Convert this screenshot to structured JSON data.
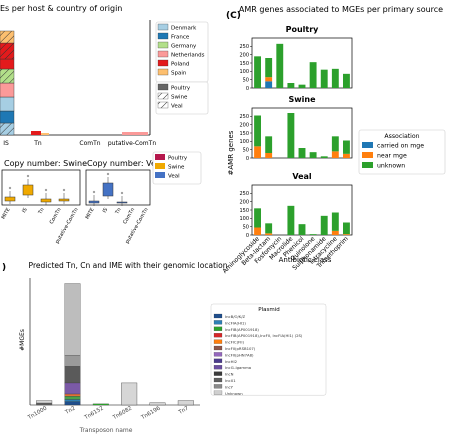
{
  "figure": {
    "panel_a_title": "Es per host & country of origin",
    "panel_c_label": "(C)",
    "panel_c_title": "AMR genes associated to MGEs per primary source",
    "panel_d_label": ")",
    "panel_d_title": "Predicted Tn, Cn and IME with their genomic location",
    "copy_swine_title": "Copy number: Swine",
    "copy_veal_title": "Copy number: Veal",
    "legend_heading": "Association",
    "plasmid_heading": "Plasmid",
    "amr_ylabel": "#AMR genes",
    "amr_xlabel": "Antibiotic class",
    "d_ylabel": "#MGEs",
    "d_xlabel": "Transposon name"
  },
  "colors": {
    "carried": "#1f77b4",
    "near": "#ff7f0e",
    "unknown": "#2ca02c"
  },
  "chart_data": [
    {
      "type": "bar",
      "id": "host_country",
      "title": "Es per host & country of origin",
      "categories": [
        "IS",
        "Tn",
        "ComTn",
        "putative-ComTn"
      ],
      "legend_countries": [
        "Denmark",
        "France",
        "Germany",
        "Netherlands",
        "Poland",
        "Spain"
      ],
      "country_colors": [
        "#a6cee3",
        "#1f78b4",
        "#b2df8a",
        "#fb9a99",
        "#e31a1c",
        "#fdbf6f"
      ],
      "legend_hosts": [
        "Poultry",
        "Swine",
        "Veal"
      ],
      "x_tick_labels": [
        "IS",
        "Tn",
        "ComTn",
        "putative-ComTn"
      ]
    },
    {
      "type": "bar",
      "id": "copy_number",
      "titles": [
        "Copy number: Swine",
        "Copy number: Veal"
      ],
      "categories": [
        "MITE",
        "IS",
        "Tn",
        "ComTn",
        "putative-ComTn"
      ],
      "legend": [
        "Poultry",
        "Swine",
        "Veal"
      ],
      "legend_colors": [
        "#b5174c",
        "#f0a900",
        "#4472c4"
      ]
    },
    {
      "type": "bar",
      "id": "amr",
      "title": "AMR genes associated to MGEs per primary source",
      "categories": [
        "Aminoglycoside",
        "Beta-lactam",
        "Fosfomycin",
        "Macrolide",
        "Phenicol",
        "Quinolone",
        "Sulphonamide",
        "Tetracycline",
        "Trimethoprim"
      ],
      "ylabel": "#AMR genes",
      "xlabel": "Antibiotic class",
      "ylim": [
        0,
        300
      ],
      "y_ticks": [
        0,
        50,
        100,
        150,
        200,
        250
      ],
      "legend": [
        "carried on mge",
        "near mge",
        "unknown"
      ],
      "panels": [
        {
          "name": "Poultry",
          "series": [
            {
              "name": "carried on mge",
              "values": [
                0,
                40,
                0,
                0,
                0,
                0,
                0,
                0,
                0
              ]
            },
            {
              "name": "near mge",
              "values": [
                0,
                25,
                0,
                0,
                0,
                0,
                0,
                0,
                0
              ]
            },
            {
              "name": "unknown",
              "values": [
                190,
                115,
                265,
                30,
                20,
                155,
                110,
                115,
                85
              ]
            }
          ]
        },
        {
          "name": "Swine",
          "series": [
            {
              "name": "carried on mge",
              "values": [
                0,
                0,
                0,
                0,
                0,
                0,
                0,
                0,
                0
              ]
            },
            {
              "name": "near mge",
              "values": [
                70,
                30,
                0,
                0,
                0,
                0,
                0,
                40,
                25
              ]
            },
            {
              "name": "unknown",
              "values": [
                185,
                100,
                0,
                270,
                60,
                35,
                10,
                90,
                80
              ]
            }
          ]
        },
        {
          "name": "Veal",
          "series": [
            {
              "name": "carried on mge",
              "values": [
                0,
                0,
                0,
                0,
                0,
                0,
                0,
                0,
                0
              ]
            },
            {
              "name": "near mge",
              "values": [
                45,
                10,
                0,
                0,
                0,
                0,
                0,
                25,
                5
              ]
            },
            {
              "name": "unknown",
              "values": [
                115,
                60,
                0,
                175,
                65,
                5,
                115,
                110,
                70
              ]
            }
          ]
        }
      ]
    },
    {
      "type": "bar",
      "id": "tn_location",
      "title": "Predicted Tn, Cn and IME with their genomic location",
      "categories": [
        "Tn1000",
        "Tn2",
        "Tn6152",
        "Tn6082",
        "Tn6196",
        "Tn7"
      ],
      "ylabel": "#MGEs",
      "xlabel": "Transposon name",
      "ylim": [
        0,
        115
      ],
      "totals": [
        4,
        110,
        1,
        20,
        2,
        4
      ],
      "tn2_segments": [
        {
          "color": "#1f4e8c",
          "value": 3
        },
        {
          "color": "#2e7fb5",
          "value": 2
        },
        {
          "color": "#4aa04a",
          "value": 3
        },
        {
          "color": "#e0713a",
          "value": 2
        },
        {
          "color": "#7b5aa6",
          "value": 10
        },
        {
          "color": "#5a5a5a",
          "value": 15
        },
        {
          "color": "#9a9a9a",
          "value": 10
        },
        {
          "color": "#bdbdbd",
          "value": 65
        }
      ],
      "plasmid_legend": [
        {
          "label": "IncB/O/K/Z",
          "color": "#1f4e8c"
        },
        {
          "label": "IncFIA(HI1)",
          "color": "#2e7fb5"
        },
        {
          "label": "IncFIB(AP001918)",
          "color": "#2ca02c"
        },
        {
          "label": "IncFIB(AP001918),IncFII, IncFIA(HI1) (2S)",
          "color": "#d62728"
        },
        {
          "label": "IncFIC(FII)",
          "color": "#ff7f0e"
        },
        {
          "label": "IncFII(pRSB107)",
          "color": "#8c564b"
        },
        {
          "label": "IncFII(pHN7A8)",
          "color": "#9467bd"
        },
        {
          "label": "IncHI2",
          "color": "#4b3b8c"
        },
        {
          "label": "IncI1-Igamma",
          "color": "#6b4ea0"
        },
        {
          "label": "IncN",
          "color": "#3a3a3a"
        },
        {
          "label": "IncX1",
          "color": "#5e5e5e"
        },
        {
          "label": "IncY",
          "color": "#8a8a8a"
        },
        {
          "label": "Unknown",
          "color": "#cfcfcf"
        }
      ]
    }
  ]
}
